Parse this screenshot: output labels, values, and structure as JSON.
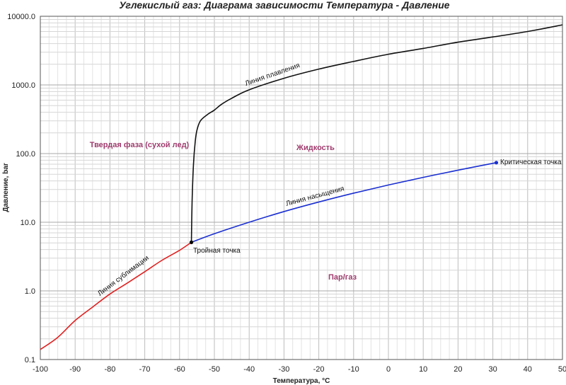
{
  "chart_data": {
    "type": "line",
    "title": "Углекислый газ: Диаграма зависимости Температура - Давление",
    "xlabel": "Температура, °С",
    "ylabel": "Давление, bar",
    "xlim": [
      -100,
      50
    ],
    "ylim": [
      0.1,
      10000
    ],
    "yscale": "log",
    "grid": true,
    "x_ticks": [
      "-100",
      "-90",
      "-80",
      "-70",
      "-60",
      "-50",
      "-40",
      "-30",
      "-20",
      "-10",
      "0",
      "10",
      "20",
      "30",
      "40",
      "50"
    ],
    "y_ticks": [
      "0.1",
      "1.0",
      "10.0",
      "100.0",
      "1000.0",
      "10000.0"
    ],
    "series": [
      {
        "name": "Линия сублимации",
        "color": "#e02020",
        "x": [
          -100,
          -95,
          -90,
          -85,
          -80,
          -75,
          -70,
          -65,
          -60,
          -56.6
        ],
        "y": [
          0.14,
          0.21,
          0.37,
          0.58,
          0.9,
          1.3,
          1.9,
          2.8,
          3.9,
          5.1
        ]
      },
      {
        "name": "Линия плавления",
        "color": "#111111",
        "x": [
          -56.6,
          -56.4,
          -56.0,
          -55.5,
          -55.0,
          -54.0,
          -52.0,
          -50.0,
          -48.0,
          -45.0,
          -40.0,
          -30.0,
          -20.0,
          -10.0,
          0,
          10,
          20,
          30,
          40,
          50
        ],
        "y": [
          5.1,
          20,
          70,
          150,
          220,
          300,
          370,
          430,
          520,
          640,
          850,
          1250,
          1700,
          2200,
          2800,
          3400,
          4200,
          5000,
          6000,
          7500
        ]
      },
      {
        "name": "Линия насыщения",
        "color": "#1a2fd0",
        "x": [
          -56.6,
          -50,
          -40,
          -30,
          -20,
          -10,
          0,
          10,
          20,
          31
        ],
        "y": [
          5.1,
          6.8,
          10,
          14.3,
          19.7,
          26.5,
          34.9,
          45,
          57.3,
          73.8
        ]
      }
    ],
    "points": [
      {
        "label": "Тройная точка",
        "x": -56.6,
        "y": 5.1,
        "color": "#000000"
      },
      {
        "label": "Критическая точка",
        "x": 31,
        "y": 73.8,
        "color": "#1a2fd0"
      }
    ],
    "regions": [
      {
        "label": "Твердая фаза (сухой лед)",
        "color": "#a03c6e"
      },
      {
        "label": "Жидкость",
        "color": "#a03c6e"
      },
      {
        "label": "Пар/газ",
        "color": "#a03c6e"
      }
    ]
  }
}
